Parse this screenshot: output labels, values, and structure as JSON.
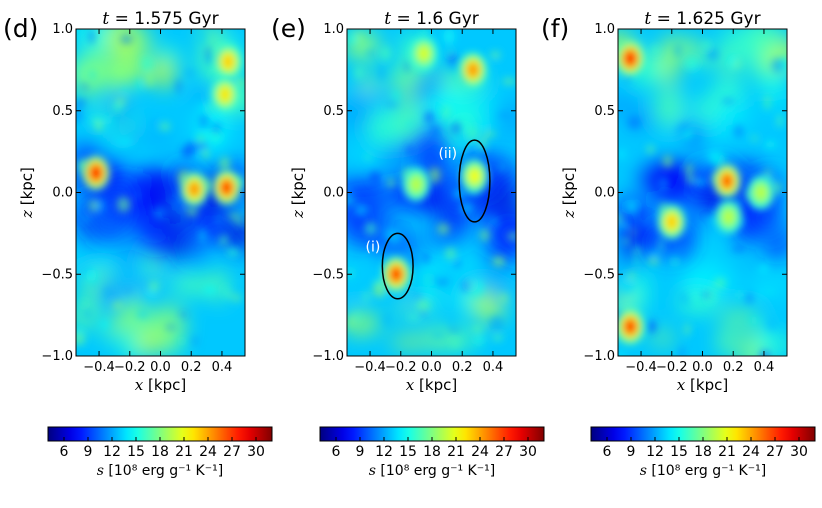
{
  "chart_data": [
    {
      "type": "heatmap",
      "panel_label": "(d)",
      "title_var": "t",
      "title_value": "1.575 Gyr",
      "xlabel_var": "x",
      "xlabel_unit": "[kpc]",
      "ylabel_var": "z",
      "ylabel_unit": "[kpc]",
      "xlim": [
        -0.55,
        0.55
      ],
      "ylim": [
        -1.0,
        1.0
      ],
      "x_ticks": [
        -0.4,
        -0.2,
        0.0,
        0.2,
        0.4
      ],
      "x_tick_labels": [
        "−0.4",
        "−0.2",
        "0.0",
        "0.2",
        "0.4"
      ],
      "y_ticks": [
        1.0,
        0.5,
        0.0,
        -0.5,
        -1.0
      ],
      "y_tick_labels": [
        "1.0",
        "0.5",
        "0.0",
        "−0.5",
        "−1.0"
      ],
      "hot_spots": [
        {
          "x": -0.42,
          "z": 0.12,
          "s": 31
        },
        {
          "x": 0.22,
          "z": 0.02,
          "s": 27
        },
        {
          "x": 0.43,
          "z": 0.03,
          "s": 30
        },
        {
          "x": 0.44,
          "z": 0.8,
          "s": 25
        },
        {
          "x": 0.42,
          "z": 0.6,
          "s": 24
        }
      ],
      "annotations": []
    },
    {
      "type": "heatmap",
      "panel_label": "(e)",
      "title_var": "t",
      "title_value": "1.6 Gyr",
      "xlabel_var": "x",
      "xlabel_unit": "[kpc]",
      "ylabel_var": "z",
      "ylabel_unit": "[kpc]",
      "xlim": [
        -0.55,
        0.55
      ],
      "ylim": [
        -1.0,
        1.0
      ],
      "x_ticks": [
        -0.4,
        -0.2,
        0.0,
        0.2,
        0.4
      ],
      "x_tick_labels": [
        "−0.4",
        "−0.2",
        "0.0",
        "0.2",
        "0.4"
      ],
      "y_ticks": [
        1.0,
        0.5,
        0.0,
        -0.5,
        -1.0
      ],
      "y_tick_labels": [
        "1.0",
        "0.5",
        "0.0",
        "−0.5",
        "−1.0"
      ],
      "hot_spots": [
        {
          "x": -0.23,
          "z": -0.5,
          "s": 30
        },
        {
          "x": 0.28,
          "z": 0.1,
          "s": 23
        },
        {
          "x": 0.27,
          "z": 0.75,
          "s": 27
        },
        {
          "x": -0.1,
          "z": 0.05,
          "s": 21
        },
        {
          "x": -0.05,
          "z": 0.85,
          "s": 22
        }
      ],
      "annotations": [
        {
          "label": "(i)",
          "cx": -0.22,
          "cz": -0.45,
          "rx": 0.1,
          "rz": 0.2
        },
        {
          "label": "(ii)",
          "cx": 0.28,
          "cz": 0.07,
          "rx": 0.1,
          "rz": 0.25
        }
      ]
    },
    {
      "type": "heatmap",
      "panel_label": "(f)",
      "title_var": "t",
      "title_value": "1.625 Gyr",
      "xlabel_var": "x",
      "xlabel_unit": "[kpc]",
      "ylabel_var": "z",
      "ylabel_unit": "[kpc]",
      "xlim": [
        -0.55,
        0.55
      ],
      "ylim": [
        -1.0,
        1.0
      ],
      "x_ticks": [
        -0.4,
        -0.2,
        0.0,
        0.2,
        0.4
      ],
      "x_tick_labels": [
        "−0.4",
        "−0.2",
        "0.0",
        "0.2",
        "0.4"
      ],
      "y_ticks": [
        1.0,
        0.5,
        0.0,
        -0.5,
        -1.0
      ],
      "y_tick_labels": [
        "1.0",
        "0.5",
        "0.0",
        "−0.5",
        "−1.0"
      ],
      "hot_spots": [
        {
          "x": -0.47,
          "z": 0.82,
          "s": 31
        },
        {
          "x": -0.47,
          "z": -0.82,
          "s": 30
        },
        {
          "x": 0.16,
          "z": 0.07,
          "s": 29
        },
        {
          "x": -0.2,
          "z": -0.18,
          "s": 25
        },
        {
          "x": 0.17,
          "z": -0.15,
          "s": 21
        },
        {
          "x": 0.38,
          "z": 0.0,
          "s": 21
        }
      ],
      "annotations": []
    }
  ],
  "colorbar": {
    "colormap": "jet",
    "range": [
      4,
      32
    ],
    "ticks": [
      6,
      9,
      12,
      15,
      18,
      21,
      24,
      27,
      30
    ],
    "tick_labels": [
      "6",
      "9",
      "12",
      "15",
      "18",
      "21",
      "24",
      "27",
      "30"
    ],
    "label_var": "s",
    "label_unit": "[10⁸ erg g⁻¹ K⁻¹]"
  }
}
